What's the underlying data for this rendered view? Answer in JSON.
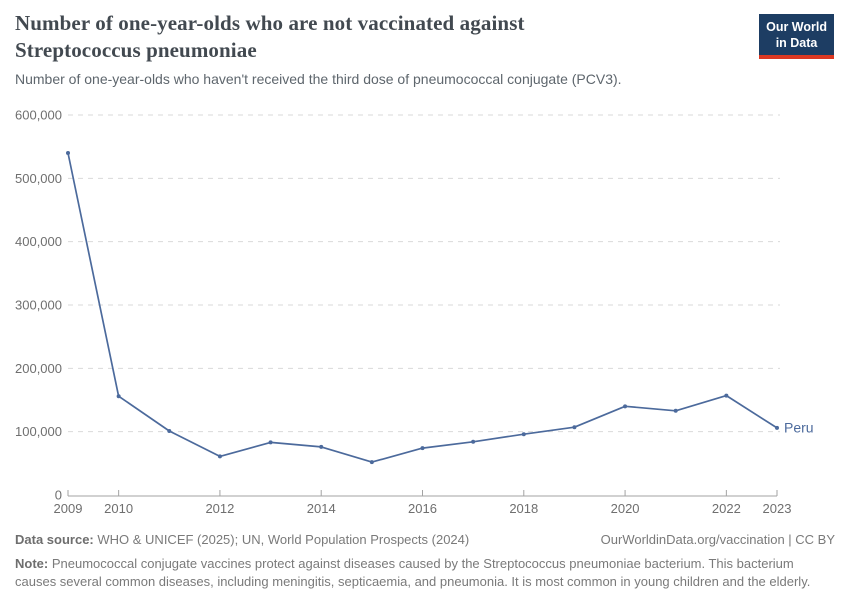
{
  "header": {
    "title": "Number of one-year-olds who are not vaccinated against Streptococcus pneumoniae",
    "subtitle": "Number of one-year-olds who haven't received the third dose of pneumococcal conjugate (PCV3)."
  },
  "logo": {
    "line1": "Our World",
    "line2": "in Data",
    "bg_color": "#1D3D63",
    "bar_color": "#DC3822"
  },
  "chart_data": {
    "type": "line",
    "title": "Number of one-year-olds who are not vaccinated against Streptococcus pneumoniae",
    "x": [
      2009,
      2010,
      2011,
      2012,
      2013,
      2014,
      2015,
      2016,
      2017,
      2018,
      2019,
      2020,
      2021,
      2022,
      2023
    ],
    "series": [
      {
        "name": "Peru",
        "color": "#4C6A9C",
        "values": [
          540000,
          156000,
          101000,
          61000,
          83000,
          76000,
          52000,
          74000,
          84000,
          96000,
          107000,
          140000,
          133000,
          157000,
          106000
        ]
      }
    ],
    "xlabel": "",
    "ylabel": "",
    "xlim": [
      2009,
      2023
    ],
    "ylim": [
      0,
      600000
    ],
    "x_ticks": [
      2009,
      2010,
      2012,
      2014,
      2016,
      2018,
      2020,
      2022,
      2023
    ],
    "x_tick_labels": [
      "2009",
      "2010",
      "2012",
      "2014",
      "2016",
      "2018",
      "2020",
      "2022",
      "2023"
    ],
    "y_ticks": [
      0,
      100000,
      200000,
      300000,
      400000,
      500000,
      600000
    ],
    "y_tick_labels": [
      "0",
      "100,000",
      "200,000",
      "300,000",
      "400,000",
      "500,000",
      "600,000"
    ],
    "grid": "horizontal-dashed",
    "legend_position": "end-of-line-label",
    "end_label": "Peru"
  },
  "footer": {
    "datasource_label": "Data source:",
    "datasource_text": "WHO & UNICEF (2025); UN, World Population Prospects (2024)",
    "link_text": "OurWorldinData.org/vaccination | CC BY",
    "note_label": "Note:",
    "note_text": "Pneumococcal conjugate vaccines protect against diseases caused by the Streptococcus pneumoniae bacterium. This bacterium causes several common diseases, including meningitis, septicaemia, and pneumonia. It is most common in young children and the elderly."
  }
}
